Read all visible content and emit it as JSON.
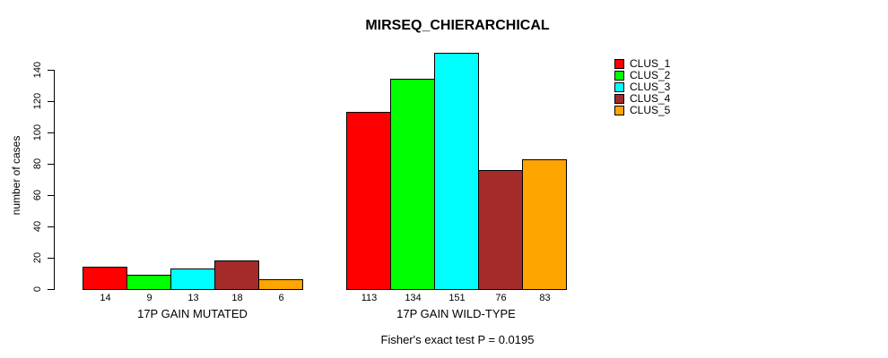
{
  "title": "MIRSEQ_CHIERARCHICAL",
  "subtitle": "Fisher's exact test P = 0.0195",
  "chart_data": {
    "type": "bar",
    "title": "MIRSEQ_CHIERARCHICAL",
    "subtitle": "Fisher's exact test P = 0.0195",
    "xlabel": "",
    "ylabel": "number of cases",
    "ylim": [
      0,
      140
    ],
    "yticks": [
      0,
      20,
      40,
      60,
      80,
      100,
      120,
      140
    ],
    "grid": false,
    "legend_position": "right",
    "bar_value_labels": true,
    "categories": [
      "17P GAIN MUTATED",
      "17P GAIN WILD-TYPE"
    ],
    "series": [
      {
        "name": "CLUS_1",
        "color": "#FF0000",
        "values": [
          14,
          113
        ]
      },
      {
        "name": "CLUS_2",
        "color": "#00FF00",
        "values": [
          9,
          134
        ]
      },
      {
        "name": "CLUS_3",
        "color": "#00FFFF",
        "values": [
          13,
          151
        ]
      },
      {
        "name": "CLUS_4",
        "color": "#A52A2A",
        "values": [
          18,
          76
        ]
      },
      {
        "name": "CLUS_5",
        "color": "#FFA500",
        "values": [
          6,
          83
        ]
      }
    ]
  }
}
